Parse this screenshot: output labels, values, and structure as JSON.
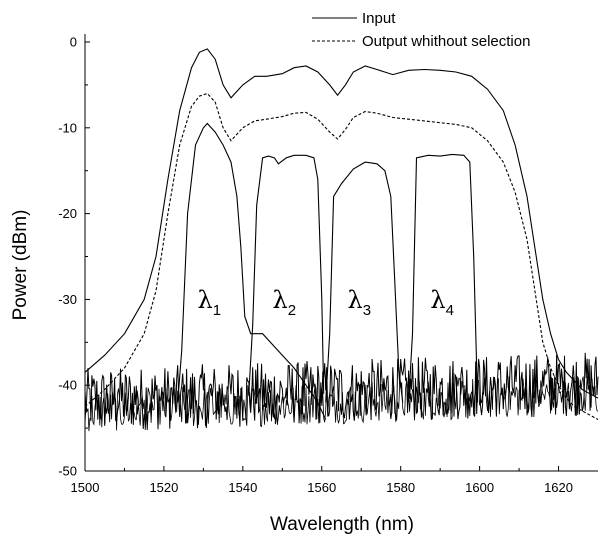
{
  "chart_data": {
    "type": "line",
    "xlabel": "Wavelength (nm)",
    "ylabel": "Power (dBm)",
    "xlim": [
      1500,
      1630
    ],
    "ylim": [
      -50,
      0
    ],
    "xticks": [
      1500,
      1520,
      1540,
      1560,
      1580,
      1600,
      1620
    ],
    "yticks": [
      0,
      -10,
      -20,
      -30,
      -40,
      -50
    ],
    "grid": false,
    "legend_position": "top-right",
    "series": [
      {
        "name": "Input",
        "style": "solid",
        "x": [
          1500,
          1505,
          1510,
          1515,
          1518,
          1521,
          1524,
          1527,
          1529,
          1531,
          1533,
          1535,
          1537,
          1540,
          1543,
          1546,
          1550,
          1553,
          1556,
          1559,
          1562,
          1564,
          1566,
          1568,
          1571,
          1574,
          1578,
          1582,
          1586,
          1590,
          1594,
          1598,
          1602,
          1606,
          1609,
          1612,
          1614,
          1616,
          1618,
          1620,
          1622,
          1624,
          1626,
          1628,
          1630
        ],
        "values": [
          -38.5,
          -36.5,
          -34,
          -30,
          -25,
          -16,
          -8,
          -3,
          -1.2,
          -0.8,
          -2,
          -5,
          -6.5,
          -5,
          -4,
          -4,
          -3.7,
          -3,
          -2.8,
          -3.5,
          -5,
          -6.2,
          -5,
          -3.5,
          -2.8,
          -3.2,
          -3.8,
          -3.3,
          -3.2,
          -3.3,
          -3.5,
          -4,
          -5.5,
          -8,
          -12,
          -18,
          -24,
          -30,
          -34,
          -37,
          -38.5,
          -39.5,
          -40.5,
          -41,
          -41.5
        ]
      },
      {
        "name": "Output whithout selection",
        "style": "dashed",
        "x": [
          1500,
          1505,
          1510,
          1515,
          1518,
          1521,
          1524,
          1527,
          1529,
          1531,
          1533,
          1535,
          1537,
          1540,
          1543,
          1546,
          1550,
          1553,
          1556,
          1559,
          1562,
          1564,
          1566,
          1568,
          1571,
          1574,
          1578,
          1582,
          1586,
          1590,
          1594,
          1598,
          1602,
          1606,
          1609,
          1612,
          1614,
          1616,
          1618,
          1620,
          1622,
          1624,
          1626,
          1628,
          1630
        ],
        "values": [
          -42.5,
          -40.5,
          -38,
          -34,
          -29,
          -20,
          -12,
          -7.5,
          -6.3,
          -6,
          -7,
          -10,
          -11.5,
          -10,
          -9.2,
          -9,
          -8.7,
          -8.3,
          -8.2,
          -9,
          -10.5,
          -11.3,
          -10.2,
          -8.8,
          -8.1,
          -8.3,
          -8.8,
          -9,
          -9.2,
          -9.4,
          -9.6,
          -10,
          -11.5,
          -14,
          -17.5,
          -23,
          -29,
          -35,
          -38,
          -40,
          -41.5,
          -42.5,
          -43,
          -43.5,
          -44
        ]
      },
      {
        "name": "λ1",
        "style": "solid",
        "x": [
          1523.5,
          1524.5,
          1526,
          1528,
          1530,
          1531,
          1533,
          1535,
          1537,
          1538.5,
          1539.5,
          1540.5,
          1542,
          1545,
          1548,
          1550,
          1553,
          1556,
          1559,
          1561
        ],
        "values": [
          -42,
          -36,
          -20,
          -12,
          -10,
          -9.5,
          -10.5,
          -12,
          -14,
          -18,
          -24,
          -32,
          -34,
          -34,
          -35.5,
          -36.5,
          -38,
          -40,
          -42,
          -44
        ]
      },
      {
        "name": "λ2",
        "style": "solid",
        "x": [
          1541.5,
          1542.5,
          1543.5,
          1545,
          1546.5,
          1548,
          1549,
          1551,
          1553,
          1556,
          1558,
          1559,
          1560,
          1560.5
        ],
        "values": [
          -41,
          -33,
          -19,
          -13.5,
          -13.3,
          -13.5,
          -14.2,
          -13.5,
          -13.2,
          -13.2,
          -13.5,
          -16,
          -30,
          -41
        ]
      },
      {
        "name": "λ3",
        "style": "solid",
        "x": [
          1561,
          1562,
          1563,
          1565,
          1568,
          1571,
          1574,
          1576,
          1577.5,
          1578.5,
          1579.5,
          1580.5
        ],
        "values": [
          -42,
          -34,
          -18,
          -16.5,
          -14.8,
          -14,
          -14.2,
          -15,
          -18,
          -28,
          -38,
          -42
        ]
      },
      {
        "name": "λ4",
        "style": "solid",
        "x": [
          1582,
          1583,
          1584,
          1587,
          1590,
          1593,
          1596,
          1597.5,
          1598.5,
          1599.5
        ],
        "values": [
          -42,
          -34,
          -13.5,
          -13.2,
          -13.3,
          -13.1,
          -13.2,
          -14,
          -25,
          -42
        ]
      }
    ],
    "noise_floor": {
      "x": [
        1500,
        1630
      ],
      "values": [
        -45.5,
        -43.5
      ]
    },
    "annotations": [
      {
        "base": "λ",
        "sub": "1",
        "x": 1531.5,
        "y": -31
      },
      {
        "base": "λ",
        "sub": "2",
        "x": 1550.5,
        "y": -31
      },
      {
        "base": "λ",
        "sub": "3",
        "x": 1569.5,
        "y": -31
      },
      {
        "base": "λ",
        "sub": "4",
        "x": 1590.5,
        "y": -31
      }
    ]
  }
}
